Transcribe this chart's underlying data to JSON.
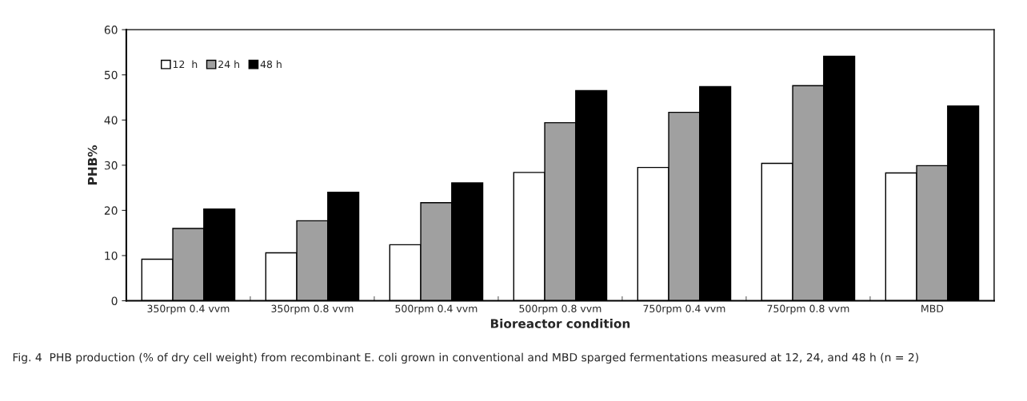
{
  "chart_data": {
    "type": "bar",
    "xlabel": "Bioreactor condition",
    "ylabel": "PHB%",
    "categories": [
      "350rpm 0.4 vvm",
      "350rpm 0.8 vvm",
      "500rpm 0.4 vvm",
      "500rpm 0.8 vvm",
      "750rpm 0.4 vvm",
      "750rpm 0.8 vvm",
      "MBD"
    ],
    "series": [
      {
        "name": "12  h",
        "color": "#ffffff",
        "values": [
          9.2,
          10.6,
          12.4,
          28.4,
          29.5,
          30.4,
          28.3
        ]
      },
      {
        "name": "24 h",
        "color": "#a0a0a0",
        "values": [
          16.0,
          17.7,
          21.7,
          39.4,
          41.7,
          47.6,
          29.9
        ]
      },
      {
        "name": "48 h",
        "color": "#000000",
        "values": [
          20.3,
          24.0,
          26.1,
          46.5,
          47.4,
          54.1,
          43.1
        ]
      }
    ],
    "ylim": [
      0,
      60
    ],
    "yticks": [
      0,
      10,
      20,
      30,
      40,
      50,
      60
    ],
    "grid": false,
    "legend": "top left",
    "annotations": [
      "Fig. 4  PHB production (% of dry cell weight) from recombinant E. coli grown in conventional and MBD sparged fermentations measured at 12, 24, and 48 h (n = 2)"
    ]
  }
}
